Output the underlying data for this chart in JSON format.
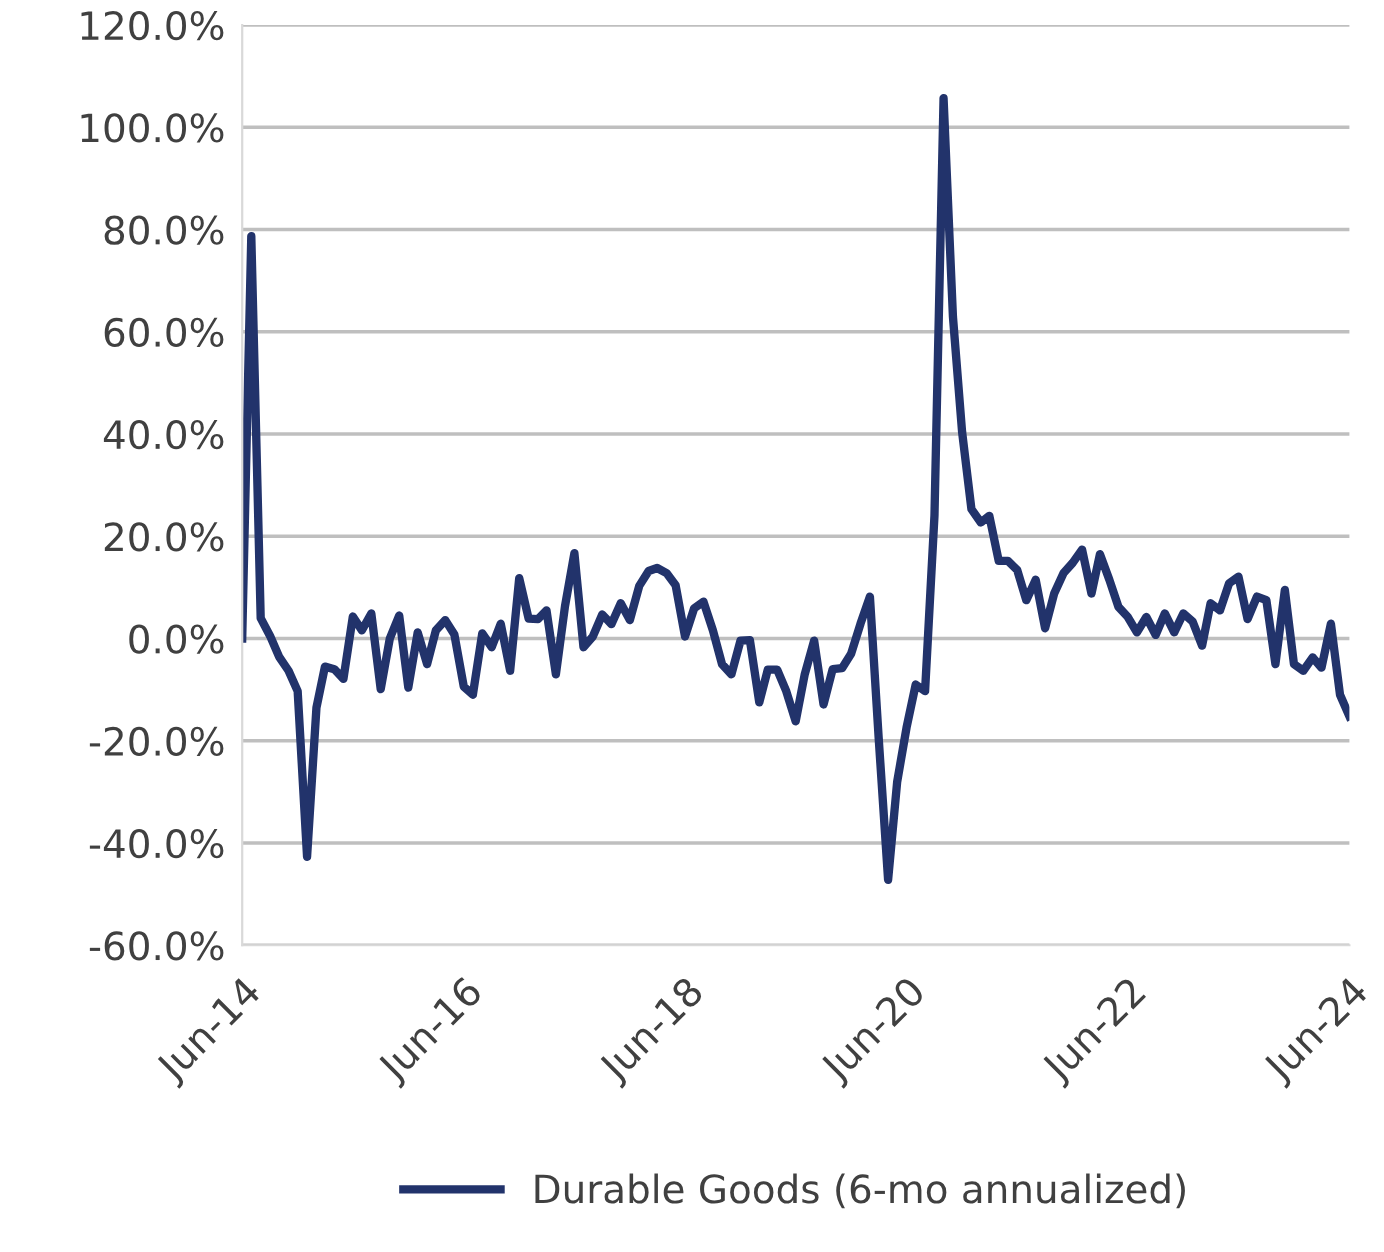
{
  "chart_data": {
    "type": "line",
    "x": [
      "2014-06",
      "2014-07",
      "2014-08",
      "2014-09",
      "2014-10",
      "2014-11",
      "2014-12",
      "2015-01",
      "2015-02",
      "2015-03",
      "2015-04",
      "2015-05",
      "2015-06",
      "2015-07",
      "2015-08",
      "2015-09",
      "2015-10",
      "2015-11",
      "2015-12",
      "2016-01",
      "2016-02",
      "2016-03",
      "2016-04",
      "2016-05",
      "2016-06",
      "2016-07",
      "2016-08",
      "2016-09",
      "2016-10",
      "2016-11",
      "2016-12",
      "2017-01",
      "2017-02",
      "2017-03",
      "2017-04",
      "2017-05",
      "2017-06",
      "2017-07",
      "2017-08",
      "2017-09",
      "2017-10",
      "2017-11",
      "2017-12",
      "2018-01",
      "2018-02",
      "2018-03",
      "2018-04",
      "2018-05",
      "2018-06",
      "2018-07",
      "2018-08",
      "2018-09",
      "2018-10",
      "2018-11",
      "2018-12",
      "2019-01",
      "2019-02",
      "2019-03",
      "2019-04",
      "2019-05",
      "2019-06",
      "2019-07",
      "2019-08",
      "2019-09",
      "2019-10",
      "2019-11",
      "2019-12",
      "2020-01",
      "2020-02",
      "2020-03",
      "2020-04",
      "2020-05",
      "2020-06",
      "2020-07",
      "2020-08",
      "2020-09",
      "2020-10",
      "2020-11",
      "2020-12",
      "2021-01",
      "2021-02",
      "2021-03",
      "2021-04",
      "2021-05",
      "2021-06",
      "2021-07",
      "2021-08",
      "2021-09",
      "2021-10",
      "2021-11",
      "2021-12",
      "2022-01",
      "2022-02",
      "2022-03",
      "2022-04",
      "2022-05",
      "2022-06",
      "2022-07",
      "2022-08",
      "2022-09",
      "2022-10",
      "2022-11",
      "2022-12",
      "2023-01",
      "2023-02",
      "2023-03",
      "2023-04",
      "2023-05",
      "2023-06",
      "2023-07",
      "2023-08",
      "2023-09",
      "2023-10",
      "2023-11",
      "2023-12",
      "2024-01",
      "2024-02",
      "2024-03",
      "2024-04",
      "2024-05",
      "2024-06"
    ],
    "series": [
      {
        "name": "Durable Goods (6-mo annualized)",
        "color": "#22336b",
        "values": [
          0,
          78.7,
          4,
          0.5,
          -3.6,
          -6.3,
          -10.3,
          -42.7,
          -13.5,
          -5.5,
          -6,
          -7.9,
          4.3,
          1.6,
          4.9,
          -9.9,
          0,
          4.5,
          -9.6,
          1.2,
          -5,
          1.6,
          3.6,
          0.8,
          -9.4,
          -11,
          1,
          -1.7,
          2.9,
          -6.3,
          11.8,
          3.9,
          3.8,
          5.5,
          -7,
          6.3,
          16.7,
          -1.7,
          0.4,
          4.7,
          2.8,
          6.9,
          3.6,
          10.3,
          13.2,
          13.8,
          12.8,
          10.4,
          0.4,
          5.9,
          7.2,
          1.6,
          -5,
          -7,
          -0.4,
          -0.3,
          -12.5,
          -6.1,
          -6.1,
          -10.3,
          -16.2,
          -7,
          -0.4,
          -12.9,
          -6,
          -5.8,
          -3,
          2.9,
          8.2,
          -19.5,
          -47.2,
          -28,
          -17.4,
          -9,
          -10.3,
          24,
          105.7,
          62.9,
          40.5,
          25.3,
          22.7,
          24,
          15.2,
          15.2,
          13.4,
          7.5,
          11.5,
          2,
          8.8,
          12.8,
          14.8,
          17.4,
          8.8,
          16.5,
          11.5,
          6.2,
          4.2,
          1.2,
          4.2,
          0.7,
          4.9,
          1.2,
          4.9,
          3.3,
          -1.4,
          6.9,
          5.5,
          10.8,
          12.1,
          3.8,
          8.2,
          7.5,
          -5,
          9.5,
          -5,
          -6.3,
          -3.7,
          -5.7,
          2.9,
          -11,
          -15.2
        ]
      }
    ],
    "xlim": [
      "2014-06",
      "2024-06"
    ],
    "xticks": [
      {
        "value": "2014-06",
        "label": "Jun-14"
      },
      {
        "value": "2016-06",
        "label": "Jun-16"
      },
      {
        "value": "2018-06",
        "label": "Jun-18"
      },
      {
        "value": "2020-06",
        "label": "Jun-20"
      },
      {
        "value": "2022-06",
        "label": "Jun-22"
      },
      {
        "value": "2024-06",
        "label": "Jun-24"
      }
    ],
    "ylim": [
      -60,
      120
    ],
    "yticks": [
      {
        "value": -60,
        "label": "-60.0%"
      },
      {
        "value": -40,
        "label": "-40.0%"
      },
      {
        "value": -20,
        "label": "-20.0%"
      },
      {
        "value": 0,
        "label": "0.0%"
      },
      {
        "value": 20,
        "label": "20.0%"
      },
      {
        "value": 40,
        "label": "40.0%"
      },
      {
        "value": 60,
        "label": "60.0%"
      },
      {
        "value": 80,
        "label": "80.0%"
      },
      {
        "value": 100,
        "label": "100.0%"
      },
      {
        "value": 120,
        "label": "120.0%"
      }
    ],
    "grid": "y",
    "legend": "bottom",
    "marker": "none",
    "line_style": "solid"
  }
}
